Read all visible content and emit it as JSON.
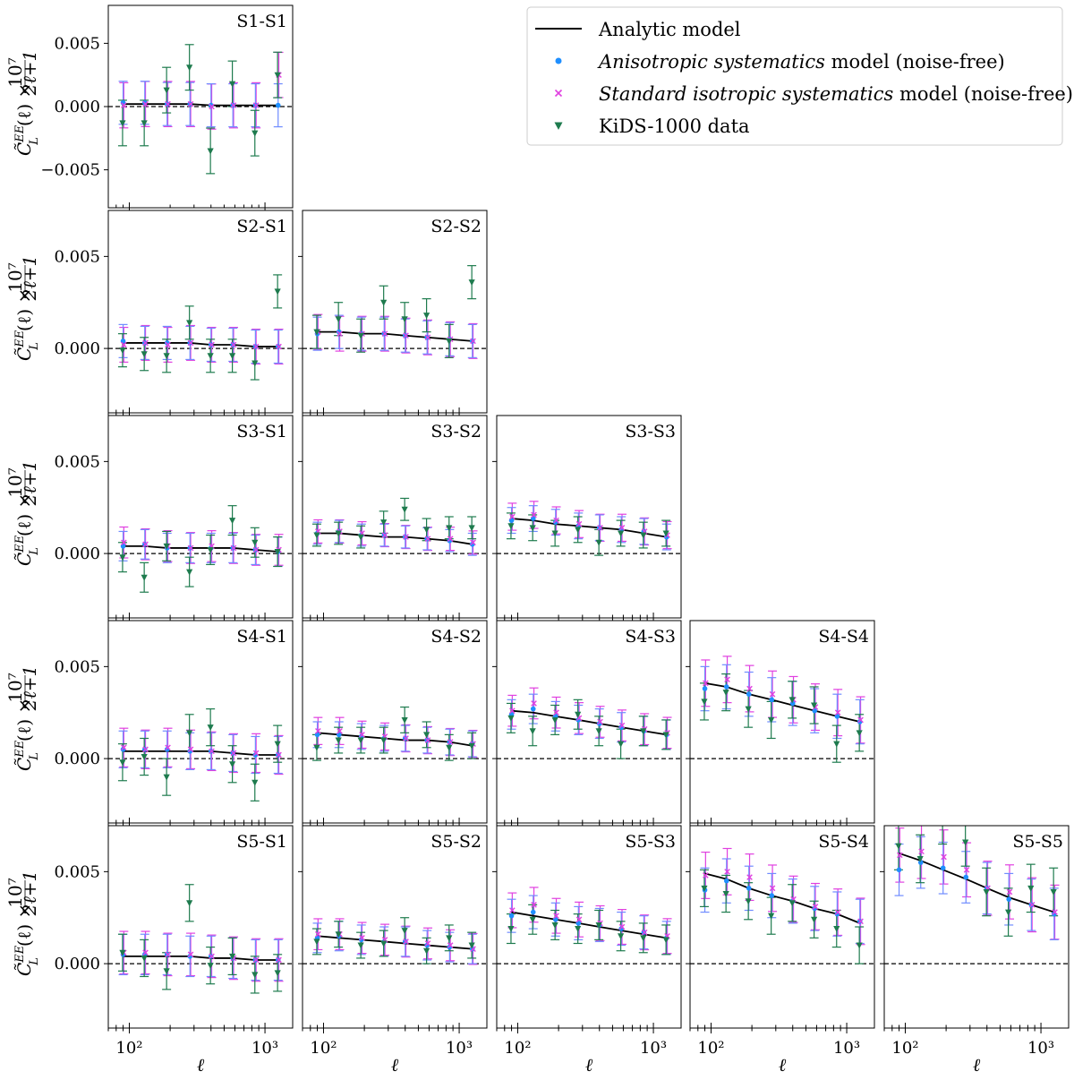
{
  "figure": {
    "ylabel_html": "C̃ᴸᴱᴱ(ℓ) × 10⁷/(2ℓ+1)",
    "ylabel_main": "C̃",
    "ylabel_sup": "EE",
    "ylabel_sub": "L",
    "ylabel_arg": "(ℓ) ×",
    "ylabel_num": "10⁷",
    "ylabel_den": "2ℓ+1",
    "xlabel": "ℓ",
    "xtick_labels": [
      "10²",
      "10³"
    ],
    "ytick_labels": [
      "0.005",
      "0.000",
      "−0.005"
    ],
    "colors": {
      "analytic": "#000000",
      "anisotropic": "#1f8fff",
      "anisotropic_err": "#6f8cff",
      "isotropic": "#e040e0",
      "kids": "#1e7b4e"
    }
  },
  "legend": {
    "items": [
      {
        "id": "analytic",
        "label": "Analytic model",
        "italic": "",
        "rest": ""
      },
      {
        "id": "anisotropic",
        "label": "",
        "italic": "Anisotropic systematics",
        "rest": " model (noise-free)"
      },
      {
        "id": "isotropic",
        "label": "",
        "italic": "Standard isotropic systematics",
        "rest": " model (noise-free)"
      },
      {
        "id": "kids",
        "label": "KiDS-1000 data",
        "italic": "",
        "rest": ""
      }
    ]
  },
  "chart_data": {
    "type": "scatter",
    "xscale": "log",
    "xlim": [
      70,
      1600
    ],
    "ylim": [
      -0.0035,
      0.0075
    ],
    "ylim_first_panel": [
      -0.008,
      0.008
    ],
    "ell": [
      90,
      130,
      190,
      280,
      400,
      580,
      850,
      1250
    ],
    "panels": [
      {
        "name": "S1-S1",
        "row": 0,
        "col": 0,
        "model": [
          0.0002,
          0.0002,
          0.0002,
          0.0002,
          0.0001,
          0.0001,
          0.0001,
          0.0001
        ],
        "aniso": [
          0.0003,
          0.0003,
          0.0002,
          0.0002,
          0.0001,
          0.0001,
          0.0001,
          0.0001
        ],
        "aniso_err": 0.0017,
        "iso": [
          0.0001,
          0.0002,
          0.0002,
          0.0002,
          0.0,
          0.0001,
          0.0001,
          0.0025
        ],
        "kids": [
          -0.0013,
          -0.0013,
          0.0013,
          0.0031,
          -0.0035,
          0.0018,
          -0.0021,
          0.0025
        ],
        "kids_err": 0.0018
      },
      {
        "name": "S2-S1",
        "row": 1,
        "col": 0,
        "model": [
          0.0003,
          0.0003,
          0.0003,
          0.0003,
          0.0002,
          0.0002,
          0.0001,
          0.0001
        ],
        "aniso": [
          0.0004,
          0.0003,
          0.0003,
          0.0003,
          0.0002,
          0.0002,
          0.0001,
          0.0001
        ],
        "aniso_err": 0.0009,
        "iso": [
          0.0002,
          0.0003,
          0.0002,
          0.0003,
          0.0002,
          0.0002,
          0.0001,
          0.0001
        ],
        "kids": [
          -0.0001,
          -0.0003,
          -0.0004,
          0.0014,
          -0.0004,
          -0.0004,
          -0.0008,
          0.0031
        ],
        "kids_err": 0.0009
      },
      {
        "name": "S2-S2",
        "row": 1,
        "col": 1,
        "model": [
          0.0009,
          0.0009,
          0.0008,
          0.0008,
          0.0007,
          0.0006,
          0.0005,
          0.0004
        ],
        "aniso": [
          0.0008,
          0.0009,
          0.0008,
          0.0008,
          0.0007,
          0.0006,
          0.0005,
          0.0004
        ],
        "aniso_err": 0.0009,
        "iso": [
          0.0009,
          0.0008,
          0.0008,
          0.0008,
          0.0007,
          0.0006,
          0.0005,
          0.0004
        ],
        "kids": [
          0.0009,
          0.0016,
          0.0007,
          0.0025,
          0.0016,
          0.0018,
          0.0004,
          0.0036
        ],
        "kids_err": 0.0009
      },
      {
        "name": "S3-S1",
        "row": 2,
        "col": 0,
        "model": [
          0.0004,
          0.0004,
          0.0003,
          0.0003,
          0.0003,
          0.0003,
          0.0002,
          0.0001
        ],
        "aniso": [
          0.0004,
          0.0005,
          0.0003,
          0.0003,
          0.0003,
          0.0003,
          0.0002,
          0.0001
        ],
        "aniso_err": 0.0008,
        "iso": [
          0.0006,
          0.0005,
          0.0004,
          0.0003,
          0.0004,
          0.0003,
          0.0002,
          0.0002
        ],
        "kids": [
          -0.0002,
          -0.0013,
          0.0004,
          -0.001,
          0.0002,
          0.0018,
          0.0006,
          0.0001
        ],
        "kids_err": 0.0008
      },
      {
        "name": "S3-S2",
        "row": 2,
        "col": 1,
        "model": [
          0.0011,
          0.0011,
          0.001,
          0.0009,
          0.0009,
          0.0008,
          0.0007,
          0.0005
        ],
        "aniso": [
          0.0011,
          0.0012,
          0.001,
          0.001,
          0.0009,
          0.0008,
          0.0007,
          0.0005
        ],
        "aniso_err": 0.0006,
        "iso": [
          0.0012,
          0.0012,
          0.0011,
          0.001,
          0.0009,
          0.0008,
          0.0008,
          0.0006
        ],
        "kids": [
          0.001,
          0.0011,
          0.0009,
          0.0017,
          0.0024,
          0.0013,
          0.0014,
          0.0014
        ],
        "kids_err": 0.0006
      },
      {
        "name": "S3-S3",
        "row": 2,
        "col": 2,
        "model": [
          0.0019,
          0.0018,
          0.0016,
          0.0015,
          0.0014,
          0.0013,
          0.0011,
          0.0009
        ],
        "aniso": [
          0.0018,
          0.0019,
          0.0017,
          0.0015,
          0.0014,
          0.0013,
          0.0012,
          0.0009
        ],
        "aniso_err": 0.0007,
        "iso": [
          0.002,
          0.0021,
          0.0018,
          0.0016,
          0.0014,
          0.0014,
          0.0012,
          0.001
        ],
        "kids": [
          0.0015,
          0.0014,
          0.0011,
          0.0013,
          0.0006,
          0.0011,
          0.001,
          0.0011
        ],
        "kids_err": 0.0007
      },
      {
        "name": "S4-S1",
        "row": 3,
        "col": 0,
        "model": [
          0.0004,
          0.0004,
          0.0004,
          0.0004,
          0.0004,
          0.0003,
          0.0002,
          0.0002
        ],
        "aniso": [
          0.0005,
          0.0005,
          0.0005,
          0.0004,
          0.0004,
          0.0003,
          0.0002,
          0.0002
        ],
        "aniso_err": 0.001,
        "iso": [
          0.0006,
          0.0005,
          0.0006,
          0.0005,
          0.0004,
          0.0003,
          0.0003,
          0.0002
        ],
        "kids": [
          -0.0002,
          0.0001,
          -0.001,
          0.0014,
          0.0017,
          -0.0003,
          -0.0013,
          0.0008
        ],
        "kids_err": 0.001
      },
      {
        "name": "S4-S2",
        "row": 3,
        "col": 1,
        "model": [
          0.0014,
          0.0013,
          0.0012,
          0.0011,
          0.001,
          0.001,
          0.0009,
          0.0007
        ],
        "aniso": [
          0.0013,
          0.0013,
          0.0012,
          0.0011,
          0.0011,
          0.001,
          0.0009,
          0.0008
        ],
        "aniso_err": 0.0007,
        "iso": [
          0.0015,
          0.0015,
          0.0013,
          0.0012,
          0.0011,
          0.001,
          0.0009,
          0.0008
        ],
        "kids": [
          0.0006,
          0.001,
          0.001,
          0.001,
          0.0021,
          0.0013,
          0.0006,
          0.0007
        ],
        "kids_err": 0.0007
      },
      {
        "name": "S4-S3",
        "row": 3,
        "col": 2,
        "model": [
          0.0026,
          0.0025,
          0.0023,
          0.0021,
          0.0019,
          0.0017,
          0.0015,
          0.0013
        ],
        "aniso": [
          0.0024,
          0.0027,
          0.0023,
          0.0021,
          0.0019,
          0.0017,
          0.0015,
          0.0013
        ],
        "aniso_err": 0.0008,
        "iso": [
          0.0026,
          0.003,
          0.0025,
          0.0022,
          0.002,
          0.0018,
          0.0016,
          0.0014
        ],
        "kids": [
          0.0022,
          0.0015,
          0.0021,
          0.0024,
          0.0015,
          0.0008,
          0.0015,
          0.0013
        ],
        "kids_err": 0.0008
      },
      {
        "name": "S4-S4",
        "row": 3,
        "col": 3,
        "model": [
          0.0041,
          0.0039,
          0.0035,
          0.0032,
          0.0029,
          0.0026,
          0.0023,
          0.002
        ],
        "aniso": [
          0.0038,
          0.0039,
          0.0035,
          0.0032,
          0.003,
          0.0026,
          0.0023,
          0.002
        ],
        "aniso_err": 0.0012,
        "iso": [
          0.0041,
          0.0043,
          0.0038,
          0.0035,
          0.0032,
          0.0028,
          0.0025,
          0.0021
        ],
        "kids": [
          0.0031,
          0.0036,
          0.0027,
          0.0021,
          0.0032,
          0.0029,
          0.0008,
          0.0014
        ],
        "kids_err": 0.001
      },
      {
        "name": "S5-S1",
        "row": 4,
        "col": 0,
        "model": [
          0.0004,
          0.0004,
          0.0004,
          0.0004,
          0.0003,
          0.0003,
          0.0002,
          0.0002
        ],
        "aniso": [
          0.0005,
          0.0005,
          0.0005,
          0.0004,
          0.0004,
          0.0003,
          0.0002,
          0.0002
        ],
        "aniso_err": 0.0011,
        "iso": [
          0.0006,
          0.0006,
          0.0005,
          0.0005,
          0.0004,
          0.0003,
          0.0002,
          0.0002
        ],
        "kids": [
          0.0006,
          0.0003,
          -0.0004,
          0.0033,
          -0.0001,
          0.0004,
          -0.0006,
          -0.0005
        ],
        "kids_err": 0.001
      },
      {
        "name": "S5-S2",
        "row": 4,
        "col": 1,
        "model": [
          0.0015,
          0.0014,
          0.0013,
          0.0012,
          0.0011,
          0.001,
          0.0009,
          0.0008
        ],
        "aniso": [
          0.0014,
          0.0015,
          0.0013,
          0.0012,
          0.0012,
          0.001,
          0.0009,
          0.0008
        ],
        "aniso_err": 0.0008,
        "iso": [
          0.0016,
          0.0016,
          0.0014,
          0.0013,
          0.0012,
          0.0011,
          0.001,
          0.0008
        ],
        "kids": [
          0.0012,
          0.0016,
          0.001,
          0.0011,
          0.0018,
          0.0007,
          0.0014,
          0.001
        ],
        "kids_err": 0.0007
      },
      {
        "name": "S5-S3",
        "row": 4,
        "col": 2,
        "model": [
          0.0028,
          0.0026,
          0.0024,
          0.0022,
          0.002,
          0.0018,
          0.0016,
          0.0014
        ],
        "aniso": [
          0.0026,
          0.0028,
          0.0024,
          0.0022,
          0.0021,
          0.0019,
          0.0017,
          0.0014
        ],
        "aniso_err": 0.0009,
        "iso": [
          0.0029,
          0.0032,
          0.0026,
          0.0024,
          0.0022,
          0.002,
          0.0017,
          0.0015
        ],
        "kids": [
          0.0019,
          0.0024,
          0.0021,
          0.0019,
          0.0021,
          0.0015,
          0.0014,
          0.0013
        ],
        "kids_err": 0.0008
      },
      {
        "name": "S5-S4",
        "row": 4,
        "col": 3,
        "model": [
          0.0049,
          0.0046,
          0.0041,
          0.0037,
          0.0034,
          0.003,
          0.0027,
          0.0022
        ],
        "aniso": [
          0.004,
          0.0045,
          0.0041,
          0.0037,
          0.0034,
          0.003,
          0.0027,
          0.0023
        ],
        "aniso_err": 0.0012,
        "iso": [
          0.0048,
          0.005,
          0.0047,
          0.0041,
          0.0035,
          0.0031,
          0.0028,
          0.0023
        ],
        "kids": [
          0.0041,
          0.0038,
          0.0034,
          0.0026,
          0.0033,
          0.0024,
          0.0019,
          0.001
        ],
        "kids_err": 0.001
      },
      {
        "name": "S5-S5",
        "row": 4,
        "col": 4,
        "model": [
          0.006,
          0.0056,
          0.0051,
          0.0046,
          0.0041,
          0.0036,
          0.0032,
          0.0028
        ],
        "aniso": [
          0.0051,
          0.0055,
          0.0052,
          0.0047,
          0.0041,
          0.0035,
          0.0032,
          0.0027
        ],
        "aniso_err": 0.0014,
        "iso": [
          0.0059,
          0.0061,
          0.0058,
          0.0051,
          0.0041,
          0.0039,
          0.0032,
          0.0028
        ],
        "kids": [
          0.0064,
          0.0057,
          0.0078,
          0.0066,
          0.0039,
          0.0028,
          0.0041,
          0.0039
        ],
        "kids_err": 0.0013
      }
    ]
  }
}
